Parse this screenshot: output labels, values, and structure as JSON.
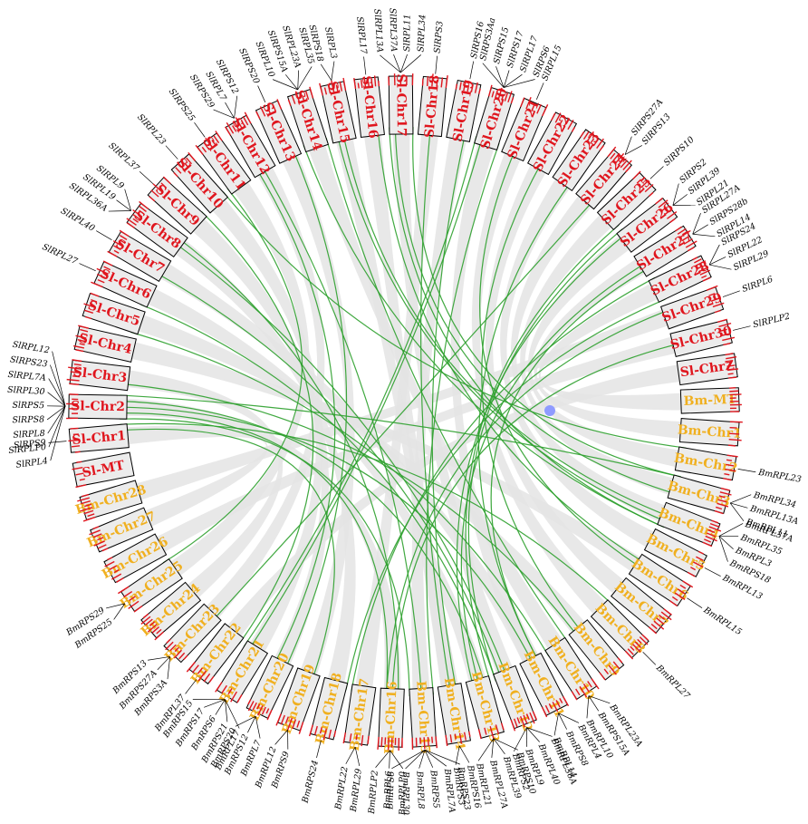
{
  "colors": {
    "sl_label": "#e0161e",
    "bm_label": "#f0b020",
    "tick": "#e0161e",
    "link": "#2ca02c",
    "band": "#e4e4e4",
    "marker": "#8f9bff"
  },
  "chromosomes": [
    {
      "id": "sl1",
      "label": "Sl-Chr1",
      "species": "sl",
      "genes": [
        "SlRPS9"
      ]
    },
    {
      "id": "sl2",
      "label": "Sl-Chr2",
      "species": "sl",
      "genes": [
        "SlRPL4",
        "SlRPLP0",
        "SlRPL8",
        "SlRPS8",
        "SlRPS5",
        "SlRPL30",
        "SlRPL7A",
        "SlRPS23",
        "SlRPL12"
      ]
    },
    {
      "id": "sl3",
      "label": "Sl-Chr3",
      "species": "sl",
      "genes": []
    },
    {
      "id": "sl4",
      "label": "Sl-Chr4",
      "species": "sl",
      "genes": []
    },
    {
      "id": "sl5",
      "label": "Sl-Chr5",
      "species": "sl",
      "genes": []
    },
    {
      "id": "sl6",
      "label": "Sl-Chr6",
      "species": "sl",
      "genes": [
        "SlRPL27"
      ]
    },
    {
      "id": "sl7",
      "label": "Sl-Chr7",
      "species": "sl",
      "genes": [
        "SlRPL40"
      ]
    },
    {
      "id": "sl8",
      "label": "Sl-Chr8",
      "species": "sl",
      "genes": [
        "SlRPL36A",
        "SlRPL19",
        "SlRPL9"
      ]
    },
    {
      "id": "sl9",
      "label": "Sl-Chr9",
      "species": "sl",
      "genes": [
        "SlRPL37"
      ]
    },
    {
      "id": "sl10",
      "label": "Sl-Chr10",
      "species": "sl",
      "genes": [
        "SlRPL23"
      ]
    },
    {
      "id": "sl11",
      "label": "Sl-Chr11",
      "species": "sl",
      "genes": [
        "SlRPS25"
      ]
    },
    {
      "id": "sl12",
      "label": "Sl-Chr12",
      "species": "sl",
      "genes": [
        "SlRPS29",
        "SlRPL7",
        "SlRPS12"
      ]
    },
    {
      "id": "sl13",
      "label": "Sl-Chr13",
      "species": "sl",
      "genes": [
        "SlRPS20"
      ]
    },
    {
      "id": "sl14",
      "label": "Sl-Chr14",
      "species": "sl",
      "genes": [
        "SlRPL10",
        "SlRPS15A",
        "SlRPL23A",
        "SlRPL35"
      ]
    },
    {
      "id": "sl15",
      "label": "Sl-Chr15",
      "species": "sl",
      "genes": [
        "SlRPS18",
        "SlRPL3"
      ]
    },
    {
      "id": "sl16",
      "label": "Sl-Chr16",
      "species": "sl",
      "genes": [
        "SlRPL17"
      ]
    },
    {
      "id": "sl17",
      "label": "Sl-Chr17",
      "species": "sl",
      "genes": [
        "SlRPL13A",
        "SlRPL37A",
        "SlRPL11",
        "SlRPL34"
      ]
    },
    {
      "id": "sl18",
      "label": "Sl-Chr18",
      "species": "sl",
      "genes": [
        "SlRPS3"
      ]
    },
    {
      "id": "sl19",
      "label": "Sl-Chr19",
      "species": "sl",
      "genes": [
        "SlRPS16"
      ]
    },
    {
      "id": "sl20",
      "label": "Sl-Chr20",
      "species": "sl",
      "genes": [
        "SlRPS3Aa",
        "SlRPS15",
        "SlRPS17",
        "SlRPL17",
        "SlRPS6"
      ]
    },
    {
      "id": "sl21",
      "label": "Sl-Chr21",
      "species": "sl",
      "genes": [
        "SlRPL15"
      ]
    },
    {
      "id": "sl22",
      "label": "Sl-Chr22",
      "species": "sl",
      "genes": []
    },
    {
      "id": "sl23",
      "label": "Sl-Chr23",
      "species": "sl",
      "genes": []
    },
    {
      "id": "sl24",
      "label": "Sl-Chr24",
      "species": "sl",
      "genes": [
        "SlRPS27A",
        "SlRPS13"
      ]
    },
    {
      "id": "sl25",
      "label": "Sl-Chr25",
      "species": "sl",
      "genes": [
        "SlRPS10"
      ]
    },
    {
      "id": "sl26",
      "label": "Sl-Chr26",
      "species": "sl",
      "genes": [
        "SlRPS2",
        "SlRPL39",
        "SlRPL21"
      ]
    },
    {
      "id": "sl27",
      "label": "Sl-Chr27",
      "species": "sl",
      "genes": [
        "SlRPL27A",
        "SlRPS28b",
        "SlRPL14"
      ]
    },
    {
      "id": "sl28",
      "label": "Sl-Chr28",
      "species": "sl",
      "genes": [
        "SlRPS24",
        "SlRPL22",
        "SlRPL29"
      ]
    },
    {
      "id": "sl29",
      "label": "Sl-Chr29",
      "species": "sl",
      "genes": [
        "SlRPL6"
      ]
    },
    {
      "id": "sl30",
      "label": "Sl-Chr30",
      "species": "sl",
      "genes": [
        "SlRPLP2"
      ]
    },
    {
      "id": "slz",
      "label": "Sl-ChrZ",
      "species": "sl",
      "genes": []
    },
    {
      "id": "bmmt",
      "label": "Bm-MT",
      "species": "bm",
      "genes": []
    },
    {
      "id": "bm1",
      "label": "Bm-Chr1",
      "species": "bm",
      "genes": []
    },
    {
      "id": "bm2",
      "label": "Bm-Chr2",
      "species": "bm",
      "genes": [
        "BmRPL23"
      ]
    },
    {
      "id": "bm3",
      "label": "Bm-Chr3",
      "species": "bm",
      "genes": [
        "BmRPL34",
        "BmRPL13A",
        "BmRPL11"
      ]
    },
    {
      "id": "bm4",
      "label": "Bm-Chr4",
      "species": "bm",
      "genes": [
        "BmRPL37A",
        "BmRPL35",
        "BmRPL3",
        "BmRPS18"
      ]
    },
    {
      "id": "bm5",
      "label": "Bm-Chr5",
      "species": "bm",
      "genes": [
        "BmRPL13"
      ]
    },
    {
      "id": "bm6",
      "label": "Bm-Chr6",
      "species": "bm",
      "genes": [
        "BmRPL15"
      ]
    },
    {
      "id": "bm7",
      "label": "Bm-Chr7",
      "species": "bm",
      "genes": []
    },
    {
      "id": "bm8",
      "label": "Bm-Chr8",
      "species": "bm",
      "genes": [
        "BmRPL27"
      ]
    },
    {
      "id": "bm9",
      "label": "Bm-Chr9",
      "species": "bm",
      "genes": []
    },
    {
      "id": "bm10",
      "label": "Bm-Chr10",
      "species": "bm",
      "genes": [
        "BmRPL23A",
        "BmRPS15A",
        "BmRPL10"
      ]
    },
    {
      "id": "bm11",
      "label": "Bm-Chr11",
      "species": "bm",
      "genes": [
        "BmRPL4",
        "BmRPS8",
        "BmRPL14"
      ]
    },
    {
      "id": "bm12",
      "label": "Bm-Chr12",
      "species": "bm",
      "genes": [
        "BmRPL36A",
        "BmRPL40",
        "BmRPL9",
        "BmRPS2"
      ]
    },
    {
      "id": "bm13",
      "label": "Bm-Chr13",
      "species": "bm",
      "genes": [
        "BmRPS10",
        "BmRPL39",
        "BmRPL27A",
        "BmRPL21"
      ]
    },
    {
      "id": "bm14",
      "label": "Bm-Chr14",
      "species": "bm",
      "genes": [
        "BmRPS16",
        "BmRPS3"
      ]
    },
    {
      "id": "bm15",
      "label": "Bm-Chr15",
      "species": "bm",
      "genes": [
        "BmRPS23",
        "BmRPL7A",
        "BmRPS5",
        "BmRPL8",
        "BmRPL30",
        "BmRPS6"
      ]
    },
    {
      "id": "bm16",
      "label": "Bm-Chr16",
      "species": "bm",
      "genes": [
        "BmRPLP0",
        "BmRPL6",
        "BmRPLP2"
      ]
    },
    {
      "id": "bm17",
      "label": "Bm-Chr17",
      "species": "bm",
      "genes": [
        "BmRPL29",
        "BmRPL22"
      ]
    },
    {
      "id": "bm18",
      "label": "Bm-Chr18",
      "species": "bm",
      "genes": [
        "BmRPS24"
      ]
    },
    {
      "id": "bm19",
      "label": "Bm-Chr19",
      "species": "bm",
      "genes": [
        "BmRPS9",
        "BmRPL12"
      ]
    },
    {
      "id": "bm20",
      "label": "Bm-Chr20",
      "species": "bm",
      "genes": [
        "BmRPL7",
        "BmRPS12",
        "BmRPS20"
      ]
    },
    {
      "id": "bm21",
      "label": "Bm-Chr21",
      "species": "bm",
      "genes": [
        "BmRPL17",
        "BmRPS21",
        "BmRPS6",
        "BmRPS17",
        "BmRPS15"
      ]
    },
    {
      "id": "bm22",
      "label": "Bm-Chr22",
      "species": "bm",
      "genes": [
        "BmRPL37"
      ]
    },
    {
      "id": "bm23",
      "label": "Bm-Chr23",
      "species": "bm",
      "genes": [
        "BmRPS3A",
        "BmRPS27A",
        "BmRPS13"
      ]
    },
    {
      "id": "bm24",
      "label": "Bm-Chr24",
      "species": "bm",
      "genes": []
    },
    {
      "id": "bm25",
      "label": "Bm-Chr25",
      "species": "bm",
      "genes": [
        "BmRPS25",
        "BmRPS29"
      ]
    },
    {
      "id": "bm26",
      "label": "Bm-Chr26",
      "species": "bm",
      "genes": []
    },
    {
      "id": "bm27",
      "label": "Bm-Chr27",
      "species": "bm",
      "genes": []
    },
    {
      "id": "bm28",
      "label": "Bm-Chr28",
      "species": "bm",
      "genes": []
    },
    {
      "id": "slmt",
      "label": "Sl-MT",
      "species": "sl",
      "genes": []
    }
  ],
  "links": [
    [
      "sl2",
      "bm15"
    ],
    [
      "sl2",
      "bm16"
    ],
    [
      "sl2",
      "bm11"
    ],
    [
      "sl2",
      "bm13"
    ],
    [
      "sl2",
      "bm3"
    ],
    [
      "sl6",
      "bm12"
    ],
    [
      "sl7",
      "bm12"
    ],
    [
      "sl8",
      "bm12"
    ],
    [
      "sl8",
      "bm16"
    ],
    [
      "sl10",
      "bm2"
    ],
    [
      "sl11",
      "bm25"
    ],
    [
      "sl12",
      "bm20"
    ],
    [
      "sl12",
      "bm15"
    ],
    [
      "sl13",
      "bm20"
    ],
    [
      "sl14",
      "bm10"
    ],
    [
      "sl14",
      "bm4"
    ],
    [
      "sl15",
      "bm4"
    ],
    [
      "sl15",
      "bm4"
    ],
    [
      "sl16",
      "bm6"
    ],
    [
      "sl17",
      "bm3"
    ],
    [
      "sl17",
      "bm4"
    ],
    [
      "sl17",
      "bm3"
    ],
    [
      "sl18",
      "bm14"
    ],
    [
      "sl19",
      "bm14"
    ],
    [
      "sl20",
      "bm15"
    ],
    [
      "sl20",
      "bm21"
    ],
    [
      "sl20",
      "bm21"
    ],
    [
      "sl21",
      "bm6"
    ],
    [
      "sl24",
      "bm23"
    ],
    [
      "sl25",
      "bm13"
    ],
    [
      "sl26",
      "bm12"
    ],
    [
      "sl26",
      "bm13"
    ],
    [
      "sl27",
      "bm13"
    ],
    [
      "sl27",
      "bm11"
    ],
    [
      "sl28",
      "bm18"
    ],
    [
      "sl28",
      "bm17"
    ],
    [
      "sl29",
      "bm16"
    ],
    [
      "sl30",
      "bm16"
    ],
    [
      "sl1",
      "bm19"
    ],
    [
      "sl9",
      "bm22"
    ],
    [
      "sl5",
      "bm10"
    ],
    [
      "sl3",
      "bm9"
    ],
    [
      "sl22",
      "bm9"
    ],
    [
      "sl23",
      "bm11"
    ],
    [
      "sl1",
      "bm8"
    ]
  ]
}
